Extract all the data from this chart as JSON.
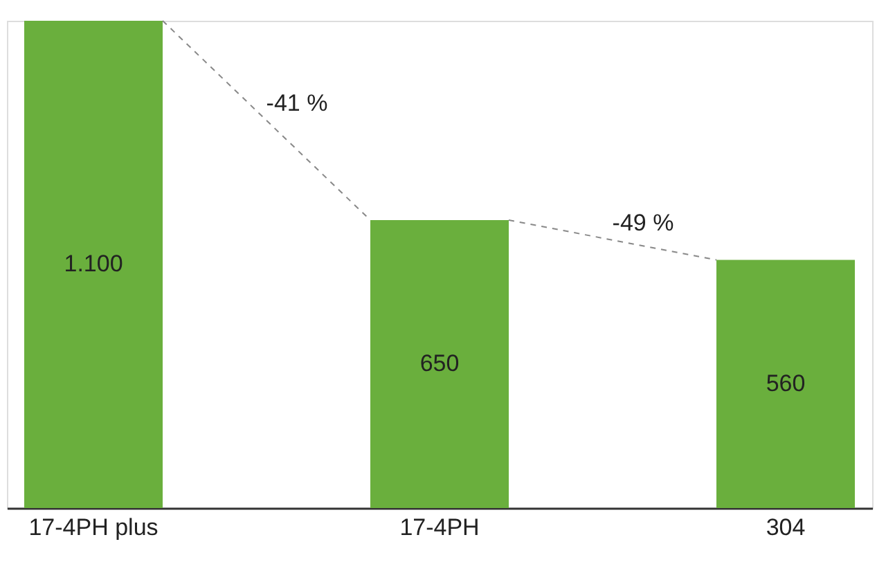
{
  "chart_data": {
    "type": "bar",
    "categories": [
      "17-4PH plus",
      "17-4PH",
      "304"
    ],
    "values": [
      1100,
      650,
      560
    ],
    "color": "#6aaf3d",
    "value_labels": [
      "1.100",
      "650",
      "560"
    ],
    "annotations": [
      "-41 %",
      "-49 %"
    ]
  }
}
